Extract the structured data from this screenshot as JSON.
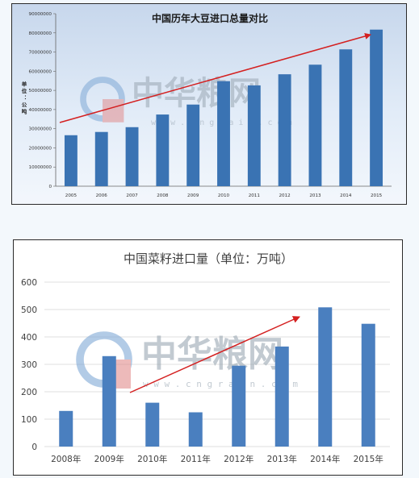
{
  "chart_data": [
    {
      "type": "bar",
      "title": "中国历年大豆进口总量对比",
      "ylabel": "单位：公吨",
      "ylim": [
        0,
        90000000
      ],
      "yticks": [
        "0",
        "10000000",
        "20000000",
        "30000000",
        "40000000",
        "50000000",
        "60000000",
        "70000000",
        "80000000",
        "90000000"
      ],
      "categories": [
        "2005",
        "2006",
        "2007",
        "2008",
        "2009",
        "2010",
        "2011",
        "2012",
        "2013",
        "2014",
        "2015"
      ],
      "values": [
        26600000,
        28300000,
        30800000,
        37400000,
        42600000,
        54800000,
        52600000,
        58400000,
        63400000,
        71400000,
        81700000
      ],
      "bar_color": "#3a73b3",
      "trend_arrow_color": "#d42020",
      "grid": false,
      "watermark": {
        "brand": "中华粮网",
        "site": "w w w . c n g r a i n . c o m"
      }
    },
    {
      "type": "bar",
      "title": "中国菜籽进口量（单位：万吨）",
      "ylim": [
        0,
        600
      ],
      "yticks": [
        "0",
        "100",
        "200",
        "300",
        "400",
        "500",
        "600"
      ],
      "categories": [
        "2008年",
        "2009年",
        "2010年",
        "2011年",
        "2012年",
        "2013年",
        "2014年",
        "2015年"
      ],
      "values": [
        130,
        330,
        160,
        125,
        295,
        365,
        508,
        448
      ],
      "bar_color": "#4a7fbf",
      "trend_arrow_color": "#d42020",
      "grid": true,
      "watermark": {
        "brand": "中华粮网",
        "site": "w w w . c n g r a i n . c o m"
      }
    }
  ]
}
